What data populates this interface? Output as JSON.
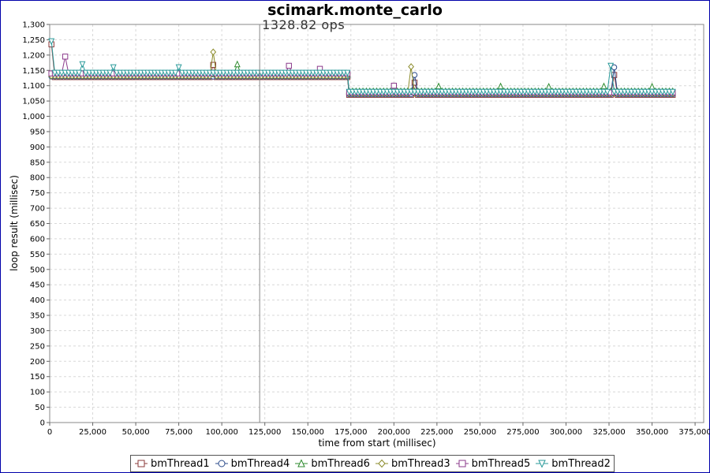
{
  "chart_data": {
    "type": "line",
    "title": "scimark.monte_carlo",
    "xlabel": "time from start (millisec)",
    "ylabel": "loop result (millisec)",
    "xlim": [
      0,
      380000
    ],
    "ylim": [
      0,
      1300
    ],
    "x_ticks": [
      0,
      25000,
      50000,
      75000,
      100000,
      125000,
      150000,
      175000,
      200000,
      225000,
      250000,
      275000,
      300000,
      325000,
      350000,
      375000
    ],
    "x_tick_labels": [
      "0",
      "25,000",
      "50,000",
      "75,000",
      "100,000",
      "125,000",
      "150,000",
      "175,000",
      "200,000",
      "225,000",
      "250,000",
      "275,000",
      "300,000",
      "325,000",
      "350,000",
      "375,000"
    ],
    "y_ticks": [
      0,
      50,
      100,
      150,
      200,
      250,
      300,
      350,
      400,
      450,
      500,
      550,
      600,
      650,
      700,
      750,
      800,
      850,
      900,
      950,
      1000,
      1050,
      1100,
      1150,
      1200,
      1250,
      1300
    ],
    "y_tick_labels": [
      "0",
      "50",
      "100",
      "150",
      "200",
      "250",
      "300",
      "350",
      "400",
      "450",
      "500",
      "550",
      "600",
      "650",
      "700",
      "750",
      "800",
      "850",
      "900",
      "950",
      "1,000",
      "1,050",
      "1,100",
      "1,150",
      "1,200",
      "1,250",
      "1,300"
    ],
    "grid": true,
    "legend_position": "bottom",
    "marker_line": {
      "x": 122000,
      "label": "1328.82 ops"
    },
    "series": [
      {
        "name": "bmThread1",
        "color": "#8b3a3a",
        "marker": "square",
        "step": 2000,
        "segments": [
          {
            "x0": 1000,
            "x1": 173000,
            "y": 1128
          },
          {
            "x0": 174000,
            "x1": 363000,
            "y": 1070
          }
        ],
        "spikes": [
          {
            "x": 1000,
            "y": 1235
          },
          {
            "x": 96000,
            "y": 1168
          },
          {
            "x": 211000,
            "y": 1110
          },
          {
            "x": 328000,
            "y": 1135
          }
        ]
      },
      {
        "name": "bmThread4",
        "color": "#2a4a8a",
        "marker": "circle",
        "step": 2000,
        "segments": [
          {
            "x0": 1000,
            "x1": 173000,
            "y": 1130
          },
          {
            "x0": 174000,
            "x1": 363000,
            "y": 1072
          }
        ],
        "spikes": [
          {
            "x": 211000,
            "y": 1135
          },
          {
            "x": 327000,
            "y": 1160
          }
        ]
      },
      {
        "name": "bmThread6",
        "color": "#2e8b2e",
        "marker": "triangle-up",
        "step": 2000,
        "segments": [
          {
            "x0": 1000,
            "x1": 173000,
            "y": 1138
          },
          {
            "x0": 174000,
            "x1": 363000,
            "y": 1082
          }
        ],
        "spikes": [
          {
            "x": 110000,
            "y": 1170
          },
          {
            "x": 226000,
            "y": 1098
          },
          {
            "x": 262000,
            "y": 1098
          },
          {
            "x": 289000,
            "y": 1097
          },
          {
            "x": 322000,
            "y": 1098
          },
          {
            "x": 350000,
            "y": 1097
          }
        ]
      },
      {
        "name": "bmThread3",
        "color": "#8b8b2a",
        "marker": "diamond",
        "step": 2000,
        "segments": [
          {
            "x0": 1000,
            "x1": 173000,
            "y": 1132
          },
          {
            "x0": 174000,
            "x1": 363000,
            "y": 1075
          }
        ],
        "spikes": [
          {
            "x": 95000,
            "y": 1210
          },
          {
            "x": 210000,
            "y": 1162
          }
        ]
      },
      {
        "name": "bmThread5",
        "color": "#8b3a8b",
        "marker": "square",
        "step": 2000,
        "segments": [
          {
            "x0": 1000,
            "x1": 173000,
            "y": 1140
          },
          {
            "x0": 174000,
            "x1": 363000,
            "y": 1078
          }
        ],
        "spikes": [
          {
            "x": 9000,
            "y": 1195
          },
          {
            "x": 139000,
            "y": 1165
          },
          {
            "x": 158000,
            "y": 1155
          },
          {
            "x": 199000,
            "y": 1100
          }
        ]
      },
      {
        "name": "bmThread2",
        "color": "#2a9a9a",
        "marker": "triangle-down",
        "step": 2000,
        "segments": [
          {
            "x0": 1000,
            "x1": 173000,
            "y": 1142
          },
          {
            "x0": 174000,
            "x1": 363000,
            "y": 1080
          }
        ],
        "spikes": [
          {
            "x": 1000,
            "y": 1245
          },
          {
            "x": 19000,
            "y": 1170
          },
          {
            "x": 37000,
            "y": 1160
          },
          {
            "x": 75000,
            "y": 1160
          },
          {
            "x": 326000,
            "y": 1165
          }
        ]
      }
    ]
  }
}
